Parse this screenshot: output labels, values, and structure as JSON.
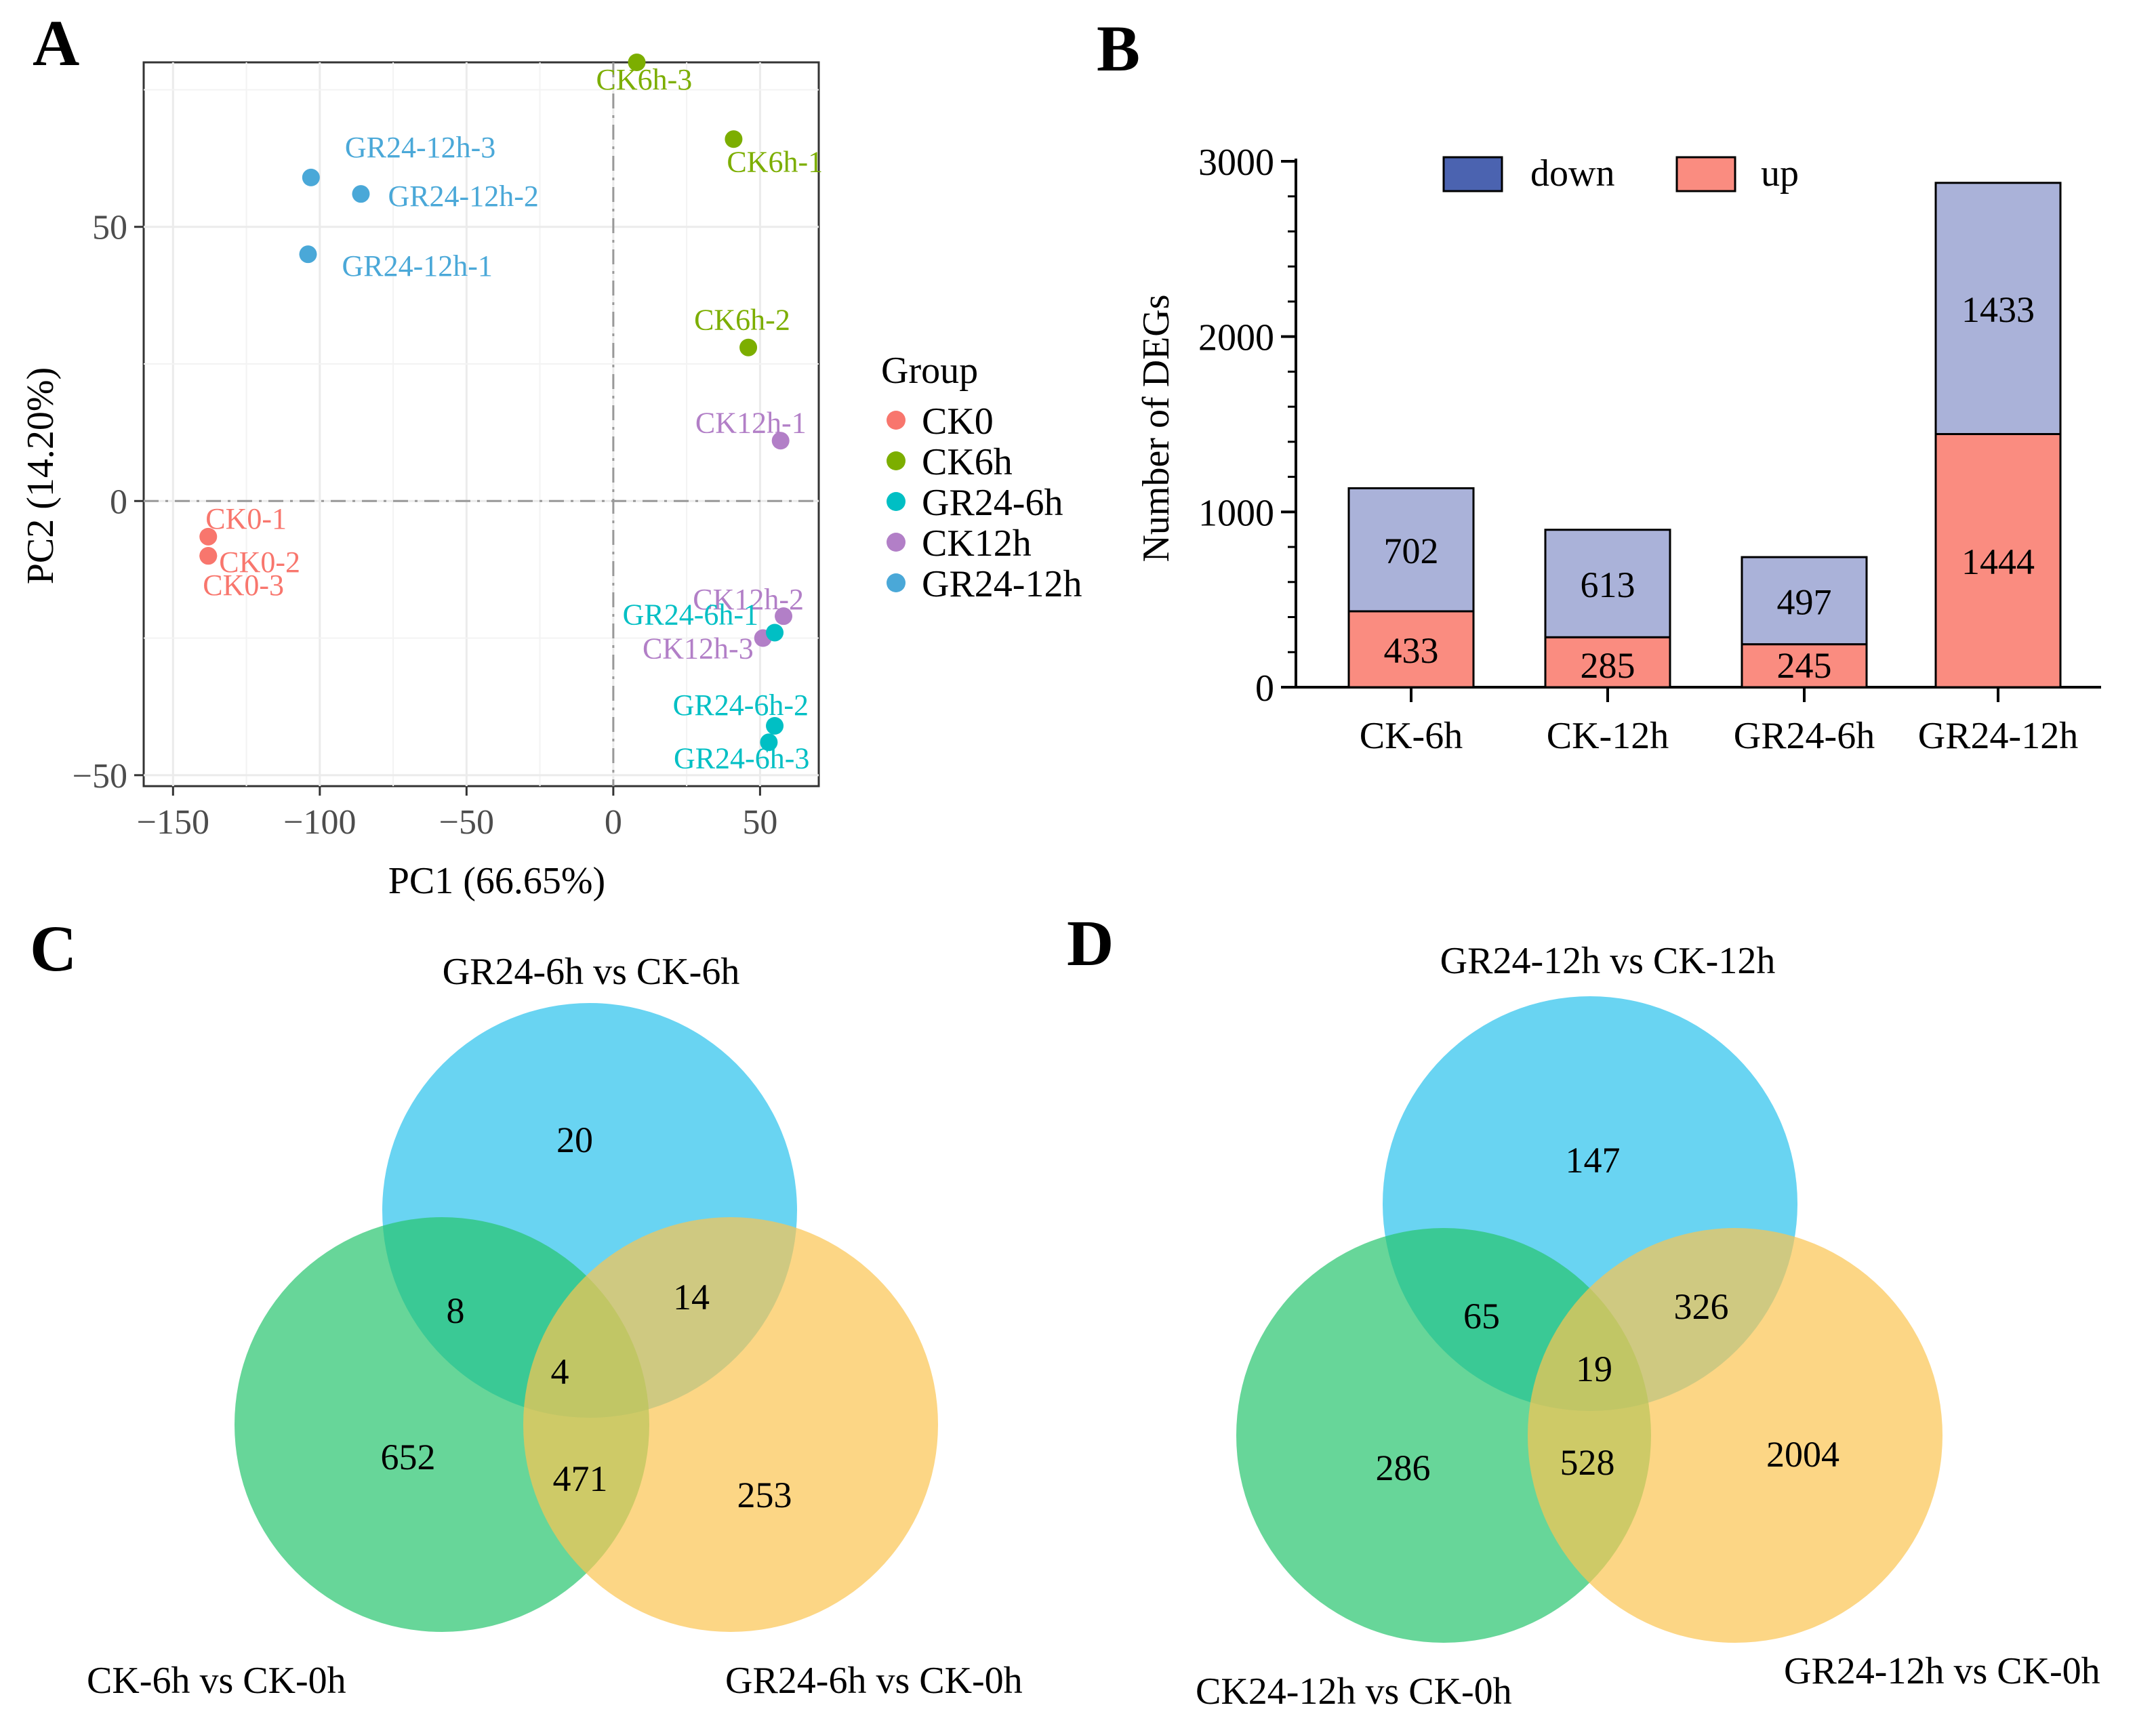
{
  "panels": {
    "a": "A",
    "b": "B",
    "c": "C",
    "d": "D"
  },
  "chart_data": [
    {
      "type": "scatter",
      "panel": "A",
      "xlabel": "PC1 (66.65%)",
      "ylabel": "PC2 (14.20%)",
      "xlim": [
        -160,
        70
      ],
      "ylim": [
        -52,
        80
      ],
      "xticks": [
        -150,
        -100,
        -50,
        0,
        50
      ],
      "yticks": [
        -50,
        0,
        50
      ],
      "xtick_labels": [
        "−150",
        "−100",
        "−50",
        "0",
        "50"
      ],
      "ytick_labels": [
        "−50",
        "0",
        "50"
      ],
      "grid": true,
      "legend_title": "Group",
      "groups": [
        {
          "name": "CK0",
          "color": "#f8766d"
        },
        {
          "name": "CK6h",
          "color": "#7cae00"
        },
        {
          "name": "GR24-6h",
          "color": "#00bfc4"
        },
        {
          "name": "CK12h",
          "color": "#b27fc7"
        },
        {
          "name": "GR24-12h",
          "color": "#4aa8d8"
        }
      ],
      "points": [
        {
          "label": "CK0-1",
          "group": "CK0",
          "x": -138,
          "y": -6.5
        },
        {
          "label": "CK0-2",
          "group": "CK0",
          "x": -138,
          "y": -10
        },
        {
          "label": "CK0-3",
          "group": "CK0",
          "x": -138,
          "y": -10
        },
        {
          "label": "CK6h-3",
          "group": "CK6h",
          "x": 8,
          "y": 80
        },
        {
          "label": "CK6h-1",
          "group": "CK6h",
          "x": 41,
          "y": 66
        },
        {
          "label": "CK6h-2",
          "group": "CK6h",
          "x": 46,
          "y": 28
        },
        {
          "label": "GR24-12h-3",
          "group": "GR24-12h",
          "x": -103,
          "y": 59
        },
        {
          "label": "GR24-12h-2",
          "group": "GR24-12h",
          "x": -86,
          "y": 56
        },
        {
          "label": "GR24-12h-1",
          "group": "GR24-12h",
          "x": -104,
          "y": 45
        },
        {
          "label": "CK12h-1",
          "group": "CK12h",
          "x": 57,
          "y": 11
        },
        {
          "label": "CK12h-2",
          "group": "CK12h",
          "x": 58,
          "y": -21
        },
        {
          "label": "CK12h-3",
          "group": "CK12h",
          "x": 51,
          "y": -25
        },
        {
          "label": "GR24-6h-1",
          "group": "GR24-6h",
          "x": 55,
          "y": -24
        },
        {
          "label": "GR24-6h-2",
          "group": "GR24-6h",
          "x": 55,
          "y": -41
        },
        {
          "label": "GR24-6h-3",
          "group": "GR24-6h",
          "x": 53,
          "y": -44
        }
      ]
    },
    {
      "type": "bar",
      "panel": "B",
      "stacked": true,
      "ylabel": "Number of DEGs",
      "xlabel": "",
      "ylim": [
        0,
        3000
      ],
      "yticks": [
        0,
        1000,
        2000,
        3000
      ],
      "ytick_labels": [
        "0",
        "1000",
        "2000",
        "3000"
      ],
      "categories": [
        "CK-6h",
        "CK-12h",
        "GR24-6h",
        "GR24-12h"
      ],
      "series": [
        {
          "name": "up",
          "color": "#fa8c80",
          "values": [
            433,
            285,
            245,
            1444
          ]
        },
        {
          "name": "down",
          "color": "#aab2d9",
          "legend_color": "#4b63b0",
          "values": [
            702,
            613,
            497,
            1433
          ]
        }
      ],
      "legend_order": [
        "down",
        "up"
      ],
      "legend_position": "top"
    },
    {
      "type": "venn",
      "panel": "C",
      "sets": [
        {
          "name": "GR24-6h vs CK-6h",
          "color": "#29c2ec"
        },
        {
          "name": "CK-6h vs CK-0h",
          "color": "#27c46e"
        },
        {
          "name": "GR24-6h vs CK-0h",
          "color": "#fbc451"
        }
      ],
      "regions": {
        "top_only": "20",
        "left_only": "652",
        "right_only": "253",
        "top_left": "8",
        "top_right": "14",
        "left_right": "471",
        "all": "4"
      }
    },
    {
      "type": "venn",
      "panel": "D",
      "sets": [
        {
          "name": "GR24-12h vs CK-12h",
          "color": "#29c2ec"
        },
        {
          "name": "CK24-12h vs CK-0h",
          "color": "#27c46e"
        },
        {
          "name": "GR24-12h vs CK-0h",
          "color": "#fbc451"
        }
      ],
      "regions": {
        "top_only": "147",
        "left_only": "286",
        "right_only": "2004",
        "top_left": "65",
        "top_right": "326",
        "left_right": "528",
        "all": "19"
      }
    }
  ]
}
